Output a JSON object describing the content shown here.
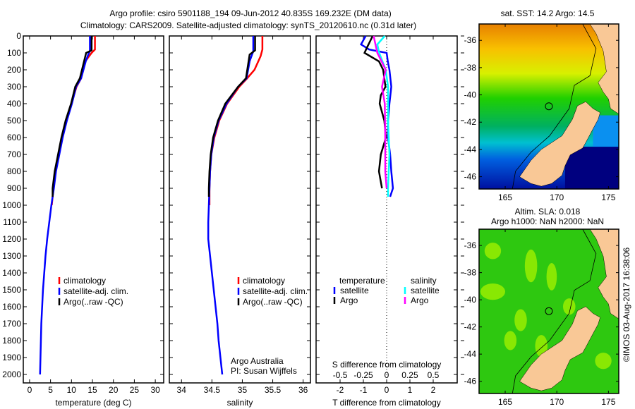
{
  "title": {
    "line1": "Argo profile: csiro 5901188_194 09-Jun-2012 40.835S 169.232E (DM data)",
    "line2": "Climatology: CARS2009. Satellite-adjusted climatology: synTS_20120610.nc (0.31d later)"
  },
  "colors": {
    "climatology": "#ff0000",
    "satellite": "#0000ff",
    "argo": "#000000",
    "s_satellite": "#00ffff",
    "s_argo": "#ff00ff",
    "land": "#f9c896"
  },
  "depth_axis": {
    "ticks": [
      0,
      100,
      200,
      300,
      400,
      500,
      600,
      700,
      800,
      900,
      1000,
      1100,
      1200,
      1300,
      1400,
      1500,
      1600,
      1700,
      1800,
      1900,
      2000
    ],
    "lim": [
      0,
      2120
    ]
  },
  "chart_data": [
    {
      "type": "line",
      "name": "temperature",
      "xlabel": "temperature (deg C)",
      "xlim": [
        -1.5,
        32
      ],
      "xticks": [
        0,
        5,
        10,
        15,
        20,
        25,
        30
      ],
      "ylabel": "depth",
      "ylim": [
        0,
        2120
      ],
      "yreversed": true,
      "legend": [
        "climatology",
        "satellite-adj. clim.",
        "Argo(..raw -QC)"
      ],
      "series": [
        {
          "name": "climatology",
          "color": "#ff0000",
          "points": [
            [
              15.6,
              0
            ],
            [
              15.6,
              80
            ],
            [
              14.8,
              100
            ],
            [
              13.3,
              150
            ],
            [
              12.3,
              250
            ],
            [
              11.2,
              300
            ],
            [
              10,
              400
            ],
            [
              8.8,
              500
            ],
            [
              7.8,
              600
            ],
            [
              7,
              700
            ],
            [
              6.2,
              800
            ],
            [
              5.7,
              900
            ],
            [
              5.3,
              1000
            ]
          ]
        },
        {
          "name": "satellite-adj. clim.",
          "color": "#0000ff",
          "points": [
            [
              14.4,
              0
            ],
            [
              14.4,
              90
            ],
            [
              14,
              110
            ],
            [
              13.4,
              150
            ],
            [
              12.3,
              250
            ],
            [
              11.1,
              300
            ],
            [
              10.1,
              400
            ],
            [
              8.9,
              500
            ],
            [
              7.9,
              600
            ],
            [
              7.1,
              700
            ],
            [
              6.3,
              800
            ],
            [
              5.8,
              900
            ],
            [
              5.2,
              1000
            ],
            [
              4.7,
              1100
            ],
            [
              4.2,
              1200
            ],
            [
              3.8,
              1300
            ],
            [
              3.5,
              1400
            ],
            [
              3.2,
              1500
            ],
            [
              3,
              1600
            ],
            [
              2.8,
              1700
            ],
            [
              2.7,
              1800
            ],
            [
              2.6,
              1900
            ],
            [
              2.5,
              2000
            ]
          ]
        },
        {
          "name": "Argo(..raw -QC)",
          "color": "#000000",
          "points": [
            [
              14.8,
              0
            ],
            [
              14.8,
              85
            ],
            [
              13.5,
              100
            ],
            [
              13,
              150
            ],
            [
              12,
              250
            ],
            [
              10.9,
              300
            ],
            [
              9.9,
              400
            ],
            [
              8.6,
              500
            ],
            [
              7.6,
              600
            ],
            [
              6.8,
              700
            ],
            [
              6,
              800
            ],
            [
              5.5,
              900
            ],
            [
              5.5,
              950
            ]
          ]
        }
      ]
    },
    {
      "type": "line",
      "name": "salinity",
      "xlabel": "salinity",
      "xlim": [
        33.8,
        36.12
      ],
      "xticks": [
        34,
        34.5,
        35,
        35.5,
        36
      ],
      "ylim": [
        0,
        2120
      ],
      "yreversed": true,
      "legend": [
        "climatology",
        "satellite-adj. clim.",
        "Argo(..raw -QC)"
      ],
      "series": [
        {
          "name": "climatology",
          "color": "#ff0000",
          "points": [
            [
              35.33,
              0
            ],
            [
              35.33,
              80
            ],
            [
              35.3,
              120
            ],
            [
              35.2,
              200
            ],
            [
              35.08,
              250
            ],
            [
              34.95,
              300
            ],
            [
              34.75,
              400
            ],
            [
              34.62,
              500
            ],
            [
              34.54,
              600
            ],
            [
              34.49,
              700
            ],
            [
              34.47,
              800
            ],
            [
              34.46,
              900
            ],
            [
              34.46,
              1000
            ]
          ]
        },
        {
          "name": "satellite-adj. clim.",
          "color": "#0000ff",
          "points": [
            [
              35.18,
              0
            ],
            [
              35.18,
              90
            ],
            [
              35.12,
              150
            ],
            [
              35.07,
              250
            ],
            [
              34.93,
              300
            ],
            [
              34.74,
              400
            ],
            [
              34.61,
              500
            ],
            [
              34.53,
              600
            ],
            [
              34.49,
              700
            ],
            [
              34.47,
              800
            ],
            [
              34.46,
              900
            ],
            [
              34.45,
              1000
            ],
            [
              34.44,
              1100
            ],
            [
              34.44,
              1200
            ],
            [
              34.47,
              1300
            ],
            [
              34.5,
              1400
            ],
            [
              34.53,
              1500
            ],
            [
              34.56,
              1600
            ],
            [
              34.59,
              1700
            ],
            [
              34.61,
              1800
            ],
            [
              34.64,
              1900
            ],
            [
              34.67,
              2000
            ]
          ]
        },
        {
          "name": "Argo(..raw -QC)",
          "color": "#000000",
          "points": [
            [
              35.21,
              0
            ],
            [
              35.21,
              85
            ],
            [
              35.12,
              110
            ],
            [
              35.06,
              250
            ],
            [
              34.93,
              300
            ],
            [
              34.72,
              400
            ],
            [
              34.6,
              500
            ],
            [
              34.52,
              600
            ],
            [
              34.48,
              700
            ],
            [
              34.46,
              800
            ],
            [
              34.45,
              900
            ],
            [
              34.45,
              950
            ]
          ]
        }
      ],
      "annotation": [
        "Argo Australia",
        "PI: Susan Wijffels"
      ]
    },
    {
      "type": "line",
      "name": "difference",
      "xlabel": "T difference from climatology",
      "xlim": [
        -3.03,
        3.03
      ],
      "xticks": [
        -2,
        -1,
        0,
        1,
        2
      ],
      "x2label": "S difference from climatology",
      "x2lim": [
        -0.758,
        0.758
      ],
      "x2ticks": [
        "-0.5",
        "-0.25",
        "0",
        "0.25",
        "0.5"
      ],
      "x2tickvals": [
        -0.5,
        -0.25,
        0,
        0.25,
        0.5
      ],
      "ylim": [
        0,
        2120
      ],
      "yreversed": true,
      "legend": {
        "temperature": "temperature",
        "salinity": "salinity",
        "t_items": [
          "satellite",
          "Argo"
        ],
        "s_items": [
          "satellite",
          "Argo"
        ]
      },
      "series": [
        {
          "name": "T satellite",
          "axis": "T",
          "color": "#0000ff",
          "points": [
            [
              -0.9,
              0
            ],
            [
              -1.1,
              50
            ],
            [
              -0.75,
              80
            ],
            [
              0,
              100
            ],
            [
              0.05,
              150
            ],
            [
              0.12,
              200
            ],
            [
              0.2,
              300
            ],
            [
              0.12,
              400
            ],
            [
              0.06,
              500
            ],
            [
              0.06,
              600
            ],
            [
              0.15,
              700
            ],
            [
              0.2,
              800
            ],
            [
              0.27,
              900
            ],
            [
              0.15,
              950
            ]
          ]
        },
        {
          "name": "T Argo",
          "axis": "T",
          "color": "#000000",
          "points": [
            [
              -0.6,
              0
            ],
            [
              -0.85,
              70
            ],
            [
              -0.95,
              100
            ],
            [
              -0.33,
              150
            ],
            [
              -0.15,
              200
            ],
            [
              -0.05,
              300
            ],
            [
              -0.25,
              350
            ],
            [
              -0.3,
              400
            ],
            [
              -0.1,
              500
            ],
            [
              -0.03,
              600
            ],
            [
              -0.25,
              700
            ],
            [
              -0.33,
              800
            ],
            [
              -0.2,
              900
            ]
          ]
        },
        {
          "name": "S satellite",
          "axis": "S",
          "color": "#00ffff",
          "points": [
            [
              -0.02,
              0
            ],
            [
              -0.1,
              50
            ],
            [
              -0.08,
              100
            ],
            [
              -0.01,
              200
            ],
            [
              0.015,
              300
            ],
            [
              0.015,
              500
            ],
            [
              0.03,
              700
            ],
            [
              0.015,
              900
            ],
            [
              0.015,
              950
            ]
          ]
        },
        {
          "name": "S Argo",
          "axis": "S",
          "color": "#ff00ff",
          "points": [
            [
              -0.14,
              0
            ],
            [
              -0.1,
              100
            ],
            [
              -0.01,
              200
            ],
            [
              -0.05,
              300
            ],
            [
              -0.02,
              400
            ],
            [
              -0.015,
              600
            ],
            [
              -0.015,
              800
            ],
            [
              0,
              900
            ]
          ]
        }
      ]
    }
  ],
  "maps": [
    {
      "title": "sat. SST: 14.2 Argo: 14.5",
      "kind": "sst",
      "lonlim": [
        162.47,
        176.0
      ],
      "latlim": [
        -46.9,
        -34.8
      ],
      "lonticks": [
        165,
        170,
        175
      ],
      "latticks": [
        -36,
        -38,
        -40,
        -42,
        -44,
        -46
      ],
      "argo": [
        169.232,
        -40.835
      ]
    },
    {
      "title": "Altim. SLA: 0.018",
      "title2": "Argo h1000: NaN h2000: NaN",
      "kind": "sla",
      "lonlim": [
        162.47,
        176.0
      ],
      "latlim": [
        -46.9,
        -34.8
      ],
      "lonticks": [
        165,
        170,
        175
      ],
      "latticks": [
        -36,
        -38,
        -40,
        -42,
        -44,
        -46
      ],
      "argo": [
        169.232,
        -40.835
      ]
    }
  ],
  "footer": "©IMOS 03-Aug-2017 16:38:06"
}
